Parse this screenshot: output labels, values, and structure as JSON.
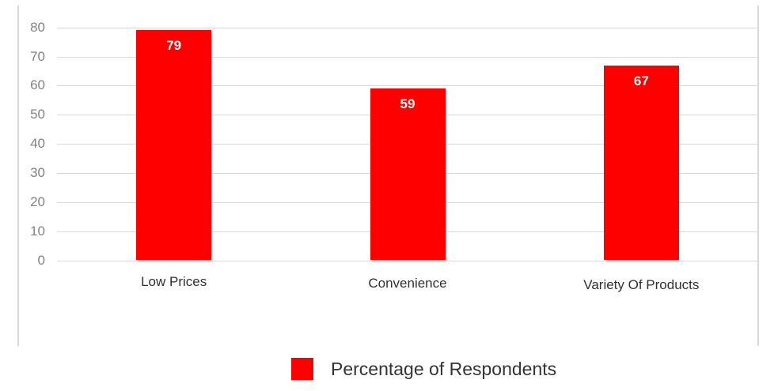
{
  "chart_data": {
    "type": "bar",
    "categories": [
      "Low Prices",
      "Convenience",
      "Variety Of Products"
    ],
    "series": [
      {
        "name": "Percentage of Respondents",
        "values": [
          79,
          59,
          67
        ]
      }
    ],
    "value_labels": [
      "79",
      "59",
      "67"
    ],
    "yticks": [
      0,
      10,
      20,
      30,
      40,
      50,
      60,
      70,
      80
    ],
    "ylim": [
      0,
      80
    ],
    "title": "",
    "xlabel": "",
    "ylabel": "",
    "grid": true,
    "bar_color": "#fe0000",
    "value_label_color": "#ffffff",
    "legend": {
      "position": "bottom",
      "entries": [
        {
          "label": "Percentage of Respondents",
          "color": "#fe0000"
        }
      ]
    }
  }
}
